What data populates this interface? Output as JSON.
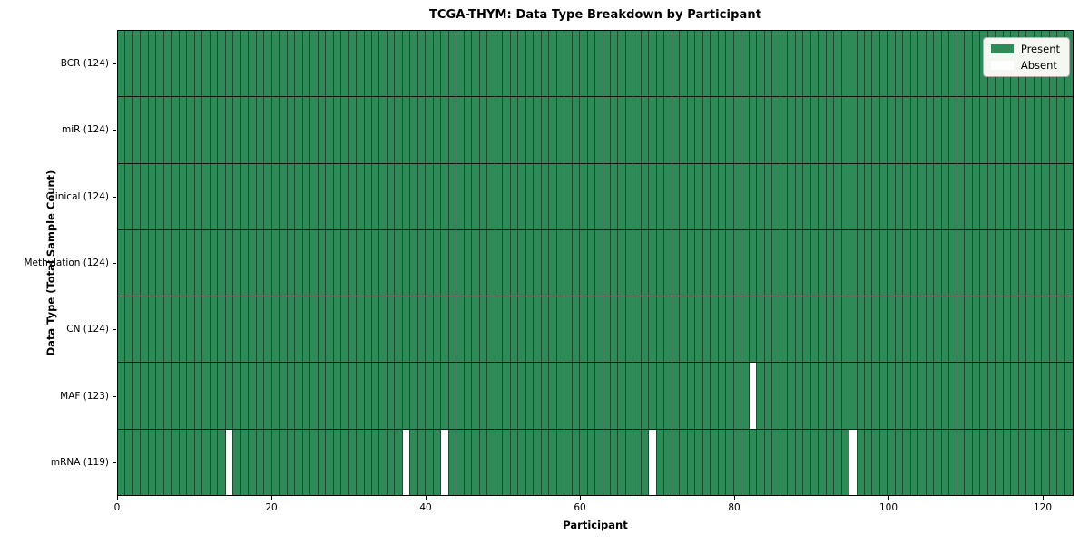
{
  "chart_data": {
    "type": "heatmap",
    "title": "TCGA-THYM: Data Type Breakdown by Participant",
    "xlabel": "Participant",
    "ylabel": "Data Type (Total Sample Count)",
    "x_ticks": [
      0,
      20,
      40,
      60,
      80,
      100,
      120
    ],
    "xlim": [
      0,
      124
    ],
    "n_participants": 124,
    "grid": "per-cell-borders",
    "legend_position": "upper-right",
    "legend": [
      {
        "label": "Present",
        "color": "#2e8b57"
      },
      {
        "label": "Absent",
        "color": "#ffffff"
      }
    ],
    "rows": [
      {
        "label": "BCR (124)",
        "data_type": "BCR",
        "total_samples": 124,
        "absent_participants": []
      },
      {
        "label": "miR (124)",
        "data_type": "miR",
        "total_samples": 124,
        "absent_participants": []
      },
      {
        "label": "Clinical (124)",
        "data_type": "Clinical",
        "total_samples": 124,
        "absent_participants": []
      },
      {
        "label": "Methylation (124)",
        "data_type": "Methylation",
        "total_samples": 124,
        "absent_participants": []
      },
      {
        "label": "CN (124)",
        "data_type": "CN",
        "total_samples": 124,
        "absent_participants": []
      },
      {
        "label": "MAF (123)",
        "data_type": "MAF",
        "total_samples": 123,
        "absent_participants": [
          82
        ]
      },
      {
        "label": "mRNA (119)",
        "data_type": "mRNA",
        "total_samples": 119,
        "absent_participants": [
          14,
          37,
          42,
          69,
          95
        ]
      }
    ],
    "colors": {
      "present": "#2e8b57",
      "absent": "#ffffff",
      "cell_edge": "#1d4a31",
      "row_divider": "#111111",
      "frame": "#000000",
      "legend_background": "#f5f7f2",
      "legend_border": "#b4b4b4",
      "text": "#000000"
    }
  }
}
